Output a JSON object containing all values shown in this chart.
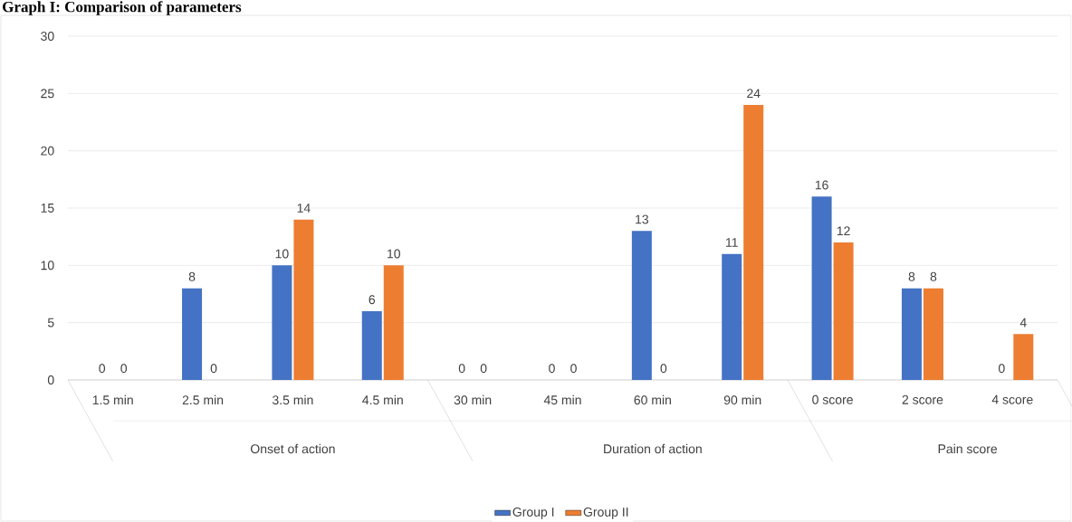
{
  "chart_data": {
    "type": "bar",
    "title": "Graph I: Comparison of parameters",
    "categories": [
      "1.5 min",
      "2.5 min",
      "3.5 min",
      "4.5 min",
      "30 min",
      "45 min",
      "60 min",
      "90 min",
      "0 score",
      "2 score",
      "4 score"
    ],
    "series": [
      {
        "name": "Group I",
        "color": "#4472c4",
        "values": [
          0,
          8,
          10,
          6,
          0,
          0,
          13,
          11,
          16,
          8,
          0
        ]
      },
      {
        "name": "Group II",
        "color": "#ed7d31",
        "values": [
          0,
          0,
          14,
          10,
          0,
          0,
          0,
          24,
          12,
          8,
          4
        ]
      }
    ],
    "annotations": [
      "Onset of action",
      "Duration of action",
      "Pain score"
    ],
    "ylim": [
      0,
      30
    ],
    "yticks": [
      0,
      5,
      10,
      15,
      20,
      25,
      30
    ],
    "grid": "y",
    "legend": "bottom",
    "data_labels": true
  }
}
